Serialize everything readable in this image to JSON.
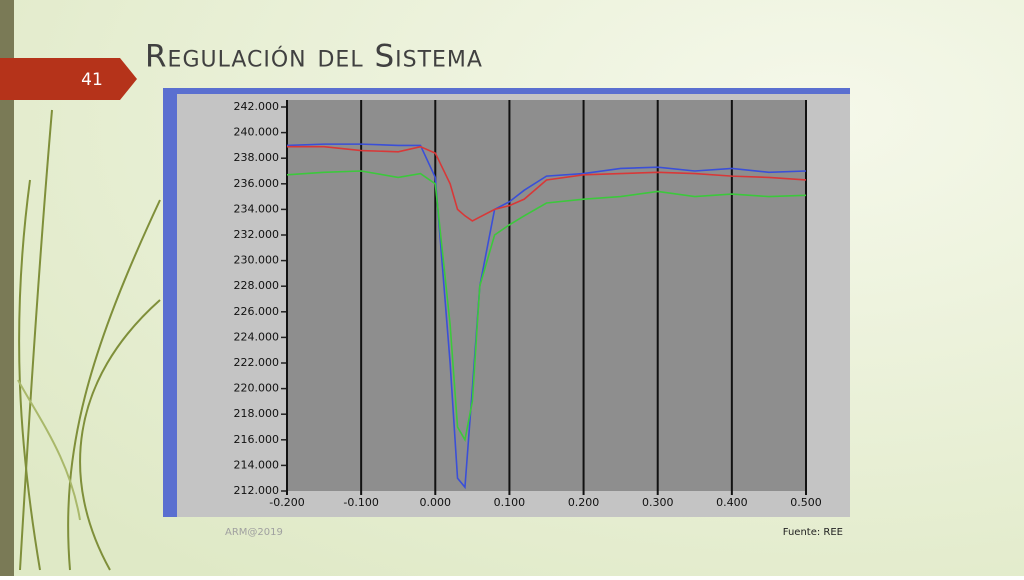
{
  "slide": {
    "title": "Regulación del Sistema",
    "number": "41",
    "footer": "ARM@2019",
    "source": "Fuente: REE"
  },
  "chart_data": {
    "type": "line",
    "x": [
      -0.2,
      -0.15,
      -0.1,
      -0.05,
      -0.02,
      0.0,
      0.02,
      0.03,
      0.04,
      0.05,
      0.06,
      0.08,
      0.1,
      0.12,
      0.15,
      0.2,
      0.25,
      0.3,
      0.35,
      0.4,
      0.45,
      0.5
    ],
    "series": [
      {
        "color": "#3a4fd8",
        "values": [
          239.0,
          239.1,
          239.1,
          239.0,
          239.0,
          236.5,
          222,
          213,
          212.3,
          220,
          228,
          234,
          234.6,
          235.5,
          236.6,
          236.8,
          237.2,
          237.3,
          237.0,
          237.2,
          236.9,
          237.0
        ]
      },
      {
        "color": "#d83838",
        "values": [
          238.9,
          238.9,
          238.6,
          238.5,
          238.9,
          238.4,
          236,
          234,
          233.5,
          233.1,
          233.4,
          234,
          234.3,
          234.8,
          236.3,
          236.7,
          236.8,
          236.9,
          236.8,
          236.6,
          236.5,
          236.3
        ]
      },
      {
        "color": "#3cc83c",
        "values": [
          236.7,
          236.9,
          237.0,
          236.5,
          236.8,
          236,
          225,
          217,
          216,
          219,
          228,
          232,
          232.8,
          233.5,
          234.5,
          234.8,
          235.0,
          235.4,
          235.0,
          235.2,
          235.0,
          235.1
        ]
      }
    ],
    "xlim": [
      -0.2,
      0.5
    ],
    "xticks": [
      {
        "value": -0.2,
        "label": "-0.200"
      },
      {
        "value": -0.1,
        "label": "-0.100"
      },
      {
        "value": 0,
        "label": "0.000"
      },
      {
        "value": 0.1,
        "label": "0.100"
      },
      {
        "value": 0.2,
        "label": "0.200"
      },
      {
        "value": 0.3,
        "label": "0.300"
      },
      {
        "value": 0.4,
        "label": "0.400"
      },
      {
        "value": 0.5,
        "label": "0.500"
      }
    ],
    "ylim": [
      212,
      242
    ],
    "yticks": [
      {
        "value": 212,
        "label": "212.000"
      },
      {
        "value": 214,
        "label": "214.000"
      },
      {
        "value": 216,
        "label": "216.000"
      },
      {
        "value": 218,
        "label": "218.000"
      },
      {
        "value": 220,
        "label": "220.000"
      },
      {
        "value": 222,
        "label": "222.000"
      },
      {
        "value": 224,
        "label": "224.000"
      },
      {
        "value": 226,
        "label": "226.000"
      },
      {
        "value": 228,
        "label": "228.000"
      },
      {
        "value": 230,
        "label": "230.000"
      },
      {
        "value": 232,
        "label": "232.000"
      },
      {
        "value": 234,
        "label": "234.000"
      },
      {
        "value": 236,
        "label": "236.000"
      },
      {
        "value": 238,
        "label": "238.000"
      },
      {
        "value": 240,
        "label": "240.000"
      },
      {
        "value": 242,
        "label": "242.000"
      }
    ],
    "grid": true
  }
}
